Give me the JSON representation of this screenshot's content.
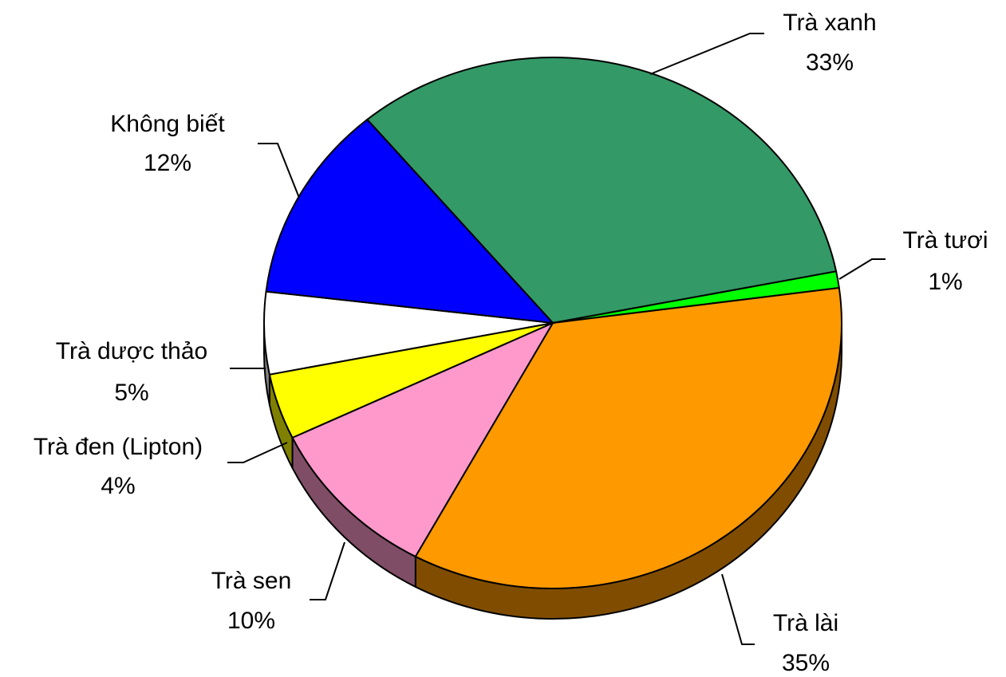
{
  "chart_data": {
    "type": "pie",
    "categories": [
      "Trà xanh",
      "Trà tươi",
      "Trà lài",
      "Trà sen",
      "Trà đen (Lipton)",
      "Trà dược thảo",
      "Không biết"
    ],
    "values": [
      33,
      1,
      35,
      10,
      4,
      5,
      12
    ],
    "value_labels": [
      "33%",
      "1%",
      "35%",
      "10%",
      "4%",
      "5%",
      "12%"
    ],
    "colors": [
      "#339966",
      "#00ff00",
      "#ff9900",
      "#ff99cc",
      "#ffff00",
      "#ffffff",
      "#0000ff"
    ]
  }
}
